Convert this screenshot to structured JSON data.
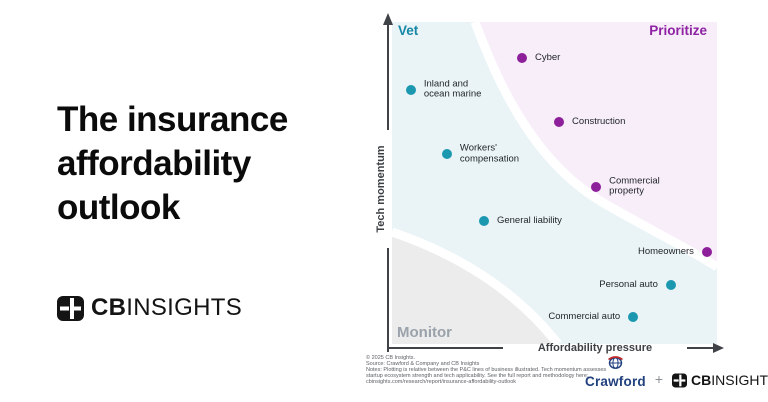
{
  "left_panel": {
    "title_lines": [
      "The insurance",
      "affordability",
      "outlook"
    ],
    "brand": {
      "bold": "CB",
      "light": "INSIGHTS"
    }
  },
  "chart": {
    "quadrants": {
      "vet": "Vet",
      "prioritize": "Prioritize",
      "monitor": "Monitor"
    },
    "axis": {
      "x_label": "Affordability pressure",
      "y_label": "Tech momentum"
    },
    "colors": {
      "teal_dot": "#1b98b0",
      "purple_dot": "#8e1f9b",
      "vet_label": "#1587a6",
      "prioritize_label": "#8e22a3",
      "monitor_label": "#9aa2ab",
      "teal_bg": "#eaf4f7",
      "pink_bg": "#f7eef9",
      "gray_bg": "#ececec"
    }
  },
  "chart_data": {
    "type": "scatter",
    "title": "The insurance affordability outlook",
    "xlabel": "Affordability pressure",
    "ylabel": "Tech momentum",
    "xlim": [
      0,
      100
    ],
    "ylim": [
      0,
      100
    ],
    "axes_qualitative": true,
    "grid": false,
    "quadrant_labels": [
      "Vet",
      "Prioritize",
      "Monitor"
    ],
    "series": [
      {
        "name": "Prioritize",
        "color": "#8e1f9b",
        "points": [
          {
            "label": "Cyber",
            "label_lines": [
              "Cyber"
            ],
            "x": 40.0,
            "y": 88.8,
            "label_side": "right"
          },
          {
            "label": "Construction",
            "label_lines": [
              "Construction"
            ],
            "x": 51.4,
            "y": 68.9,
            "label_side": "right"
          },
          {
            "label": "Commercial property",
            "label_lines": [
              "Commercial",
              "property"
            ],
            "x": 62.8,
            "y": 48.8,
            "label_side": "right"
          },
          {
            "label": "Homeowners",
            "label_lines": [
              "Homeowners"
            ],
            "x": 96.9,
            "y": 28.6,
            "label_side": "left"
          }
        ]
      },
      {
        "name": "Vet",
        "color": "#1b98b0",
        "points": [
          {
            "label": "Inland and ocean marine",
            "label_lines": [
              "Inland and",
              "ocean marine"
            ],
            "x": 5.8,
            "y": 78.9,
            "label_side": "right"
          },
          {
            "label": "Workers' compensation",
            "label_lines": [
              "Workers'",
              "compensation"
            ],
            "x": 16.9,
            "y": 59.0,
            "label_side": "right"
          },
          {
            "label": "General liability",
            "label_lines": [
              "General liability"
            ],
            "x": 28.3,
            "y": 38.2,
            "label_side": "right"
          },
          {
            "label": "Personal auto",
            "label_lines": [
              "Personal auto"
            ],
            "x": 85.8,
            "y": 18.3,
            "label_side": "left"
          },
          {
            "label": "Commercial auto",
            "label_lines": [
              "Commercial auto"
            ],
            "x": 74.2,
            "y": 8.4,
            "label_side": "left"
          }
        ]
      }
    ]
  },
  "footer": {
    "lines": [
      "© 2025 CB Insights.",
      "Source: Crawford & Company and CB Insights",
      "Notes: Plotting is relative between the P&C lines of business illustrated. Tech momentum assesses",
      "startup ecosystem strength and tech applicability. See the full report and methodology here:",
      "cbinsights.com/research/report/insurance-affordability-outlook"
    ],
    "logos": {
      "crawford": "Crawford",
      "plus": "+",
      "cb_bold": "CB",
      "cb_light": "INSIGHTS"
    }
  }
}
